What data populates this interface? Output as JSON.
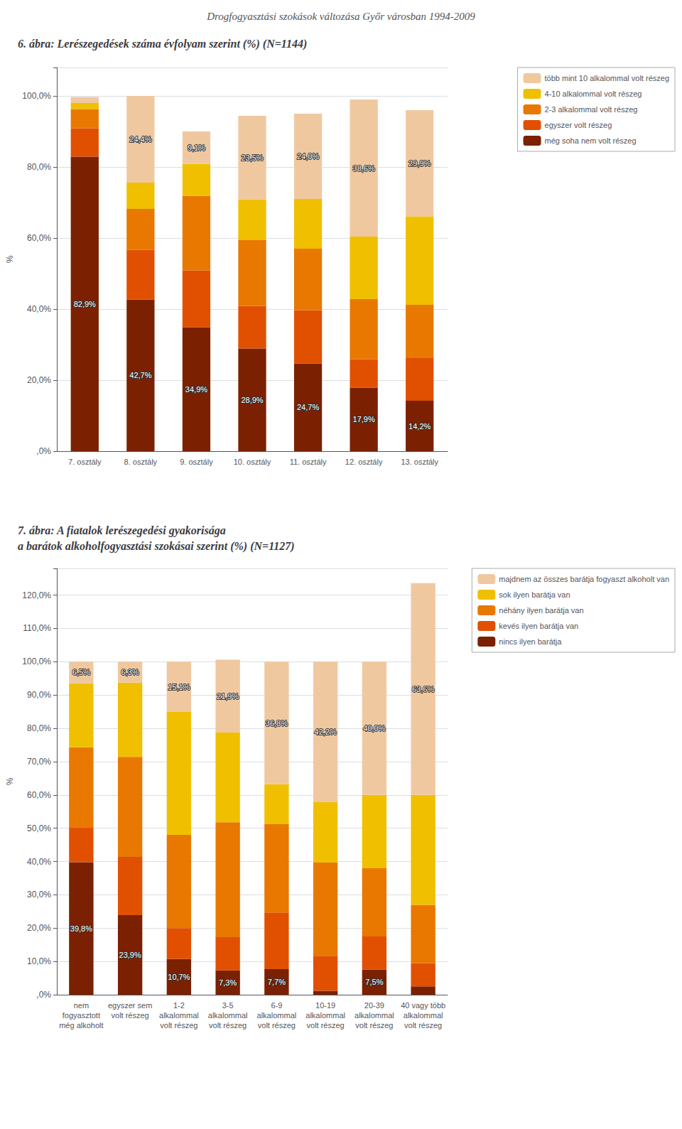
{
  "title": "Drogfogyasztási szokások változása Győr városban 1994-2009",
  "chart_data": [
    {
      "type": "bar",
      "title": "6. ábra: Lerészegedések száma évfolyam szerint (%) (N=1144)",
      "categories": [
        "7. osztály",
        "8. osztály",
        "9. osztály",
        "10. osztály",
        "11. osztály",
        "12. osztály",
        "13. osztály"
      ],
      "stacked": true,
      "grid": true,
      "legend": "upper right",
      "ylabel": "%",
      "ylim": [
        0,
        108
      ],
      "yticks": [
        {
          "value": 0,
          "label": ",0%"
        },
        {
          "value": 20,
          "label": "20,0%"
        },
        {
          "value": 40,
          "label": "40,0%"
        },
        {
          "value": 60,
          "label": "60,0%"
        },
        {
          "value": 80,
          "label": "80,0%"
        },
        {
          "value": 100,
          "label": "100,0%"
        }
      ],
      "series": [
        {
          "name": "még soha nem volt részeg",
          "color": "#7B2000",
          "values": [
            82.9,
            42.7,
            34.9,
            28.9,
            24.7,
            17.9,
            14.2
          ],
          "data_labels": true,
          "value_labels": [
            "82,9%",
            "42,7%",
            "34,9%",
            "28,9%",
            "24,7%",
            "17,9%",
            "14,2%"
          ]
        },
        {
          "name": "egyszer volt részeg",
          "color": "#E05000",
          "values": [
            8.0,
            14.0,
            16.0,
            12.0,
            15.0,
            8.0,
            12.0
          ]
        },
        {
          "name": "2-3 alkalommal volt részeg",
          "color": "#E87800",
          "values": [
            5.4,
            11.5,
            21.0,
            18.5,
            17.3,
            16.9,
            15.0
          ]
        },
        {
          "name": "4-10 alkalommal volt részeg",
          "color": "#F0C000",
          "values": [
            1.7,
            7.4,
            9.0,
            11.5,
            14.0,
            17.6,
            24.9
          ]
        },
        {
          "name": "több mint 10 alkalommal volt részeg",
          "color": "#F0C8A0",
          "values": [
            1.7,
            24.4,
            9.1,
            23.5,
            24.0,
            38.6,
            29.9
          ],
          "data_labels": true,
          "value_labels": [
            null,
            "24,4%",
            "9,1%",
            "23,5%",
            "24,0%",
            "38,6%",
            "29,9%"
          ]
        }
      ]
    },
    {
      "type": "bar",
      "title": "7. ábra: A fiatalok lerészegedési gyakorisága\na barátok alkoholfogyasztási szokásai szerint (%) (N=1127)",
      "categories": [
        "nem\nfogyasztott\nmég alkoholt",
        "egyszer sem\nvolt részeg",
        "1-2\nalkalommal\nvolt részeg",
        "3-5\nalkalommal\nvolt részeg",
        "6-9\nalkalommal\nvolt részeg",
        "10-19\nalkalommal\nvolt részeg",
        "20-39\nalkalommal\nvolt részeg",
        "40 vagy több\nalkalommal\nvolt részeg"
      ],
      "stacked": true,
      "grid": true,
      "legend": "upper right",
      "ylabel": "%",
      "ylim": [
        0,
        128
      ],
      "yticks": [
        {
          "value": 0,
          "label": ",0%"
        },
        {
          "value": 10,
          "label": "10,0%"
        },
        {
          "value": 20,
          "label": "20,0%"
        },
        {
          "value": 30,
          "label": "30,0%"
        },
        {
          "value": 40,
          "label": "40,0%"
        },
        {
          "value": 50,
          "label": "50,0%"
        },
        {
          "value": 60,
          "label": "60,0%"
        },
        {
          "value": 70,
          "label": "70,0%"
        },
        {
          "value": 80,
          "label": "80,0%"
        },
        {
          "value": 90,
          "label": "90,0%"
        },
        {
          "value": 100,
          "label": "100,0%"
        },
        {
          "value": 110,
          "label": "110,0%"
        },
        {
          "value": 120,
          "label": "120,0%"
        }
      ],
      "series": [
        {
          "name": "nincs ilyen barátja",
          "color": "#7B2000",
          "values": [
            39.8,
            23.9,
            10.7,
            7.3,
            7.7,
            1.2,
            7.5,
            2.5
          ],
          "data_labels": true,
          "value_labels": [
            "39,8%",
            "23,9%",
            "10,7%",
            "7,3%",
            "7,7%",
            null,
            "7,5%",
            null
          ]
        },
        {
          "name": "kevés ilyen barátja van",
          "color": "#E05000",
          "values": [
            10.5,
            17.5,
            9.3,
            10.0,
            17.0,
            10.5,
            10.0,
            7.0
          ]
        },
        {
          "name": "néhány ilyen barátja van",
          "color": "#E87800",
          "values": [
            24.0,
            30.0,
            28.0,
            34.5,
            26.5,
            28.0,
            20.5,
            17.5
          ]
        },
        {
          "name": "sok ilyen barátja van",
          "color": "#F0C000",
          "values": [
            19.2,
            22.3,
            36.9,
            26.9,
            12.0,
            18.1,
            22.0,
            33.0
          ]
        },
        {
          "name": "majdnem az összes barátja fogyaszt alkoholt van",
          "color": "#F0C8A0",
          "values": [
            6.5,
            6.3,
            15.1,
            21.9,
            36.8,
            42.2,
            40.0,
            63.6
          ],
          "data_labels": true,
          "value_labels": [
            "6,5%",
            "6,3%",
            "15,1%",
            "21,9%",
            "36,8%",
            "42,2%",
            "40,0%",
            "63,6%"
          ]
        }
      ]
    }
  ]
}
